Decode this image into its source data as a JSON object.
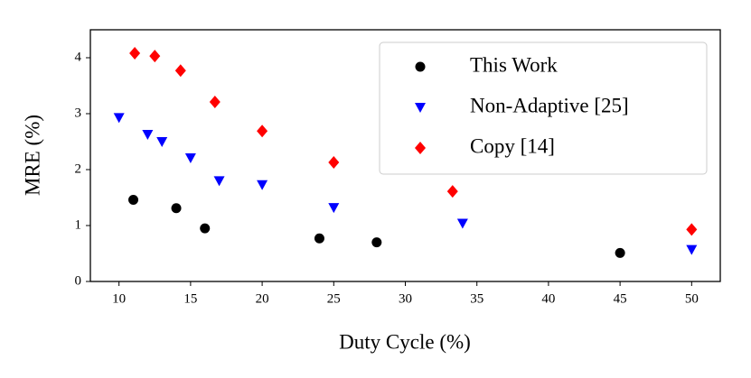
{
  "chart_data": {
    "type": "scatter",
    "x_label": "Duty Cycle (%)",
    "y_label": "MRE (%)",
    "xlim": [
      8,
      52
    ],
    "ylim": [
      0,
      4.5
    ],
    "xticks": [
      10,
      15,
      20,
      25,
      30,
      35,
      40,
      45,
      50
    ],
    "yticks": [
      0,
      1,
      2,
      3,
      4
    ],
    "legend": "upper right",
    "series": [
      {
        "name": "This Work",
        "color": "#000000",
        "marker": "circle",
        "x": [
          11,
          14,
          16,
          24,
          28,
          45
        ],
        "values": [
          1.46,
          1.31,
          0.95,
          0.77,
          0.7,
          0.51
        ]
      },
      {
        "name": "Non-Adaptive [25]",
        "color": "#0000ff",
        "marker": "triangle-down",
        "x": [
          10,
          12,
          13,
          15,
          17,
          20,
          25,
          34,
          50
        ],
        "values": [
          2.93,
          2.63,
          2.5,
          2.21,
          1.8,
          1.73,
          1.32,
          1.04,
          0.57
        ]
      },
      {
        "name": "Copy [14]",
        "color": "#ff0000",
        "marker": "diamond",
        "x": [
          11.1,
          12.5,
          14.3,
          16.7,
          20,
          25,
          33.3,
          50
        ],
        "values": [
          4.08,
          4.03,
          3.77,
          3.21,
          2.69,
          2.13,
          1.61,
          0.93
        ]
      }
    ]
  }
}
